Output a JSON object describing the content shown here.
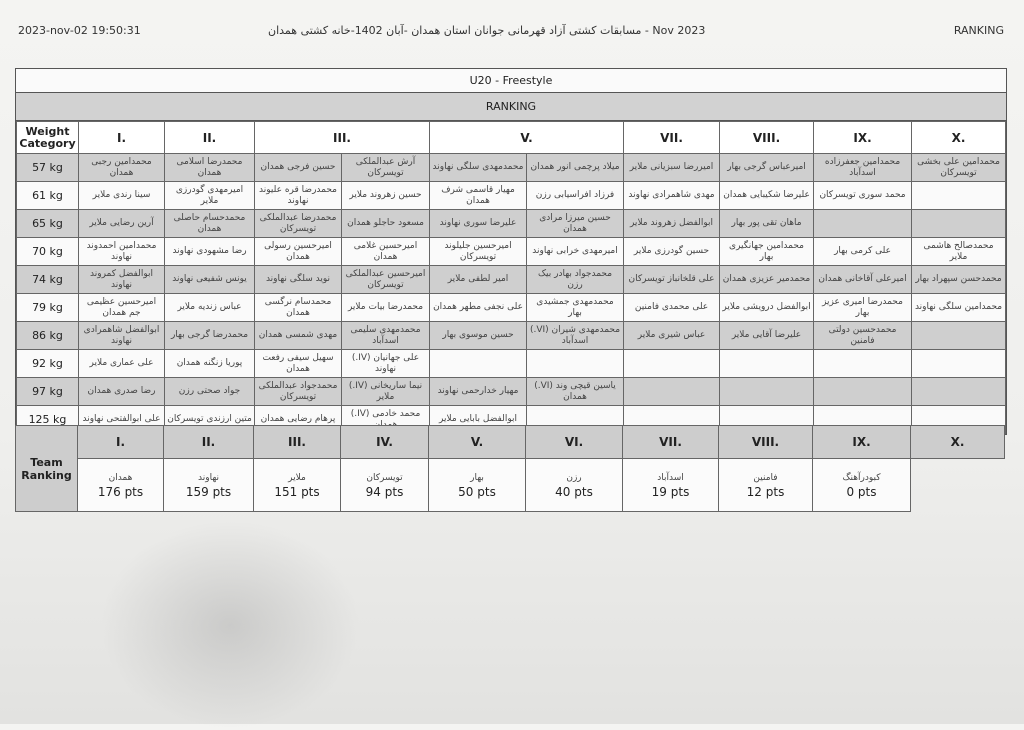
{
  "header": {
    "datetime": "2023-nov-02 19:50:31",
    "title": "Nov 2023 - مسابقات کشتی آزاد قهرمانی جوانان استان همدان -آبان 1402-خانه کشتی همدان",
    "right": "RANKING"
  },
  "table": {
    "title": "U20 - Freestyle",
    "subtitle": "RANKING",
    "weight_header": "Weight Category",
    "columns": [
      "I.",
      "II.",
      "III.",
      "V.",
      "VII.",
      "VIII.",
      "IX.",
      "X."
    ],
    "rows": [
      {
        "weight": "57 kg",
        "cells": [
          "محمدامین رجبی همدان",
          "محمدرضا اسلامی همدان",
          "حسین فرجی همدان",
          "آرش عبدالملکی تویسرکان",
          "محمدمهدی سلگی نهاوند",
          "میلاد پرچمی انور همدان",
          "امیررضا سبزیانی ملایر",
          "امیرعباس گرجی بهار",
          "محمدامین جعفرزاده اسدآباد",
          "محمدامین علی بخشی تویسرکان"
        ]
      },
      {
        "weight": "61 kg",
        "cells": [
          "سینا رندی ملایر",
          "امیرمهدی گودرزی ملایر",
          "محمدرضا قره علیوند نهاوند",
          "حسین زهروند ملایر",
          "مهیار قاسمی شرف همدان",
          "فرزاد افراسیابی رزن",
          "مهدی شاهمرادی نهاوند",
          "علیرضا شکیبایی همدان",
          "محمد سوری تویسرکان",
          ""
        ]
      },
      {
        "weight": "65 kg",
        "cells": [
          "آرین رضایی ملایر",
          "محمدحسام حاصلی همدان",
          "محمدرضا عبدالملکی تویسرکان",
          "مسعود حاجلو همدان",
          "علیرضا سوری نهاوند",
          "حسین میرزا مرادی همدان",
          "ابوالفضل زهروند ملایر",
          "ماهان تقی پور بهار",
          "",
          ""
        ]
      },
      {
        "weight": "70 kg",
        "cells": [
          "محمدامین احمدوند نهاوند",
          "رضا مشهودی نهاوند",
          "امیرحسین رسولی همدان",
          "امیرحسین غلامی همدان",
          "امیرحسین جلیلوند تویسرکان",
          "امیرمهدی خرابی نهاوند",
          "حسین گودرزی ملایر",
          "محمدامین جهانگیری بهار",
          "علی کرمی بهار",
          "محمدصالح هاشمی ملایر"
        ]
      },
      {
        "weight": "74 kg",
        "cells": [
          "ابوالفضل کمروند نهاوند",
          "یونس شفیعی نهاوند",
          "نوید سلگی نهاوند",
          "امیرحسین عبدالملکی تویسرکان",
          "امیر لطفی ملایر",
          "محمدجواد بهادر بیک رزن",
          "علی قلخانباز تویسرکان",
          "محمدمیر عزیزی همدان",
          "امیرعلی آقاخانی همدان",
          "محمدحسن سپهراد بهار"
        ]
      },
      {
        "weight": "79 kg",
        "cells": [
          "امیرحسین عظیمی جم همدان",
          "عباس زندیه ملایر",
          "محمدسام نرگسی همدان",
          "محمدرضا بیات ملایر",
          "علی نجفی مطهر همدان",
          "محمدمهدی جمشیدی بهار",
          "علی محمدی فامنین",
          "ابوالفضل درویشی ملایر",
          "محمدرضا امیری عزیز بهار",
          "محمدامین سلگی نهاوند"
        ]
      },
      {
        "weight": "86 kg",
        "cells": [
          "ابوالفضل شاهمرادی نهاوند",
          "محمدرضا گرجی بهار",
          "مهدی شمسی همدان",
          "محمدمهدی سلیمی اسدآباد",
          "حسین موسوی بهار",
          "محمدمهدی شیران (VI.) اسدآباد",
          "عباس شیری ملایر",
          "علیرضا آقایی ملایر",
          "محمدحسین دولتی فامنین",
          ""
        ]
      },
      {
        "weight": "92 kg",
        "cells": [
          "علی عماری ملایر",
          "پوریا زنگنه همدان",
          "سهیل سیفی رفعت همدان",
          "علی جهانیان (IV.) نهاوند",
          "",
          "",
          "",
          "",
          "",
          ""
        ]
      },
      {
        "weight": "97 kg",
        "cells": [
          "رضا صدری همدان",
          "جواد صحتی رزن",
          "محمدجواد عبدالملکی تویسرکان",
          "نیما ساریخانی (IV.) ملایر",
          "مهیار خدارحمی نهاوند",
          "یاسین قیچی وند (VI.) همدان",
          "",
          "",
          "",
          ""
        ]
      },
      {
        "weight": "125 kg",
        "cells": [
          "علی ابوالفتحی نهاوند",
          "متین ارزندی تویسرکان",
          "پرهام رضایی همدان",
          "محمد خادمی (IV.) همدان",
          "ابوالفضل بابایی ملایر",
          "",
          "",
          "",
          "",
          ""
        ]
      }
    ]
  },
  "team_ranking": {
    "label": "Team Ranking",
    "items": [
      {
        "rank": "I.",
        "team": "همدان",
        "pts": "176 pts"
      },
      {
        "rank": "II.",
        "team": "نهاوند",
        "pts": "159 pts"
      },
      {
        "rank": "III.",
        "team": "ملایر",
        "pts": "151 pts"
      },
      {
        "rank": "IV.",
        "team": "تویسرکان",
        "pts": "94 pts"
      },
      {
        "rank": "V.",
        "team": "بهار",
        "pts": "50 pts"
      },
      {
        "rank": "VI.",
        "team": "رزن",
        "pts": "40 pts"
      },
      {
        "rank": "VII.",
        "team": "اسدآباد",
        "pts": "19 pts"
      },
      {
        "rank": "VIII.",
        "team": "فامنین",
        "pts": "12 pts"
      },
      {
        "rank": "IX.",
        "team": "کبودرآهنگ",
        "pts": "0 pts"
      },
      {
        "rank": "X.",
        "team": "",
        "pts": ""
      }
    ]
  }
}
